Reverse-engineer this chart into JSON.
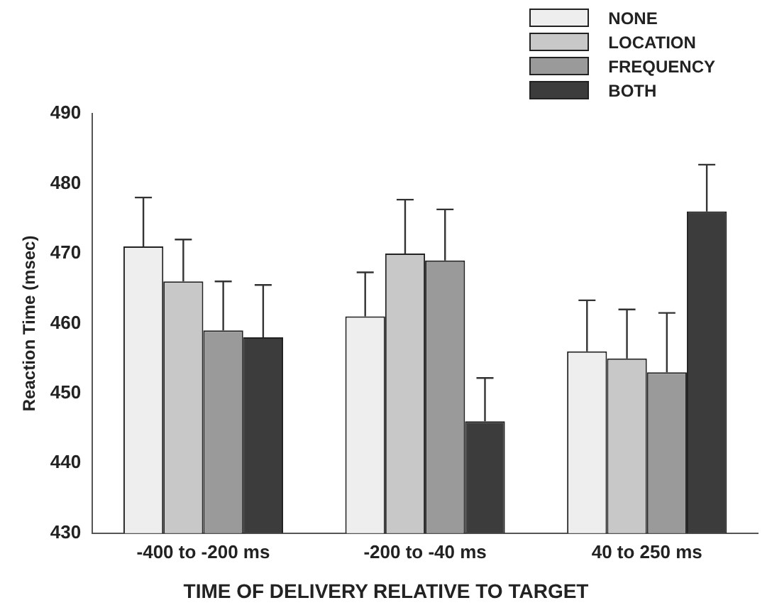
{
  "chart_data": {
    "type": "bar",
    "xlabel": "TIME OF DELIVERY RELATIVE TO TARGET",
    "ylabel": "Reaction Time (msec)",
    "categories": [
      "-400 to -200 ms",
      "-200 to -40 ms",
      "40 to 250 ms"
    ],
    "series": [
      {
        "name": "NONE",
        "color": "#eeeeee",
        "values": [
          471,
          461,
          456
        ],
        "errors": [
          [
            471,
            478
          ],
          [
            461,
            467.3
          ],
          [
            456,
            463.3
          ]
        ]
      },
      {
        "name": "LOCATION",
        "color": "#c8c8c8",
        "values": [
          466,
          470,
          455
        ],
        "errors": [
          [
            466,
            472
          ],
          [
            470,
            477.7
          ],
          [
            455,
            462
          ]
        ]
      },
      {
        "name": "FREQUENCY",
        "color": "#9a9a9a",
        "values": [
          459,
          469,
          453
        ],
        "errors": [
          [
            459,
            466
          ],
          [
            469,
            476.3
          ],
          [
            453,
            461.5
          ]
        ]
      },
      {
        "name": "BOTH",
        "color": "#3c3c3c",
        "values": [
          458,
          446,
          476
        ],
        "errors": [
          [
            458,
            465.5
          ],
          [
            446,
            452.2
          ],
          [
            476,
            482.7
          ]
        ]
      }
    ],
    "ylim": [
      430,
      490
    ],
    "yticks": [
      430,
      440,
      450,
      460,
      470,
      480,
      490
    ],
    "legend": "top right",
    "grid": false
  }
}
